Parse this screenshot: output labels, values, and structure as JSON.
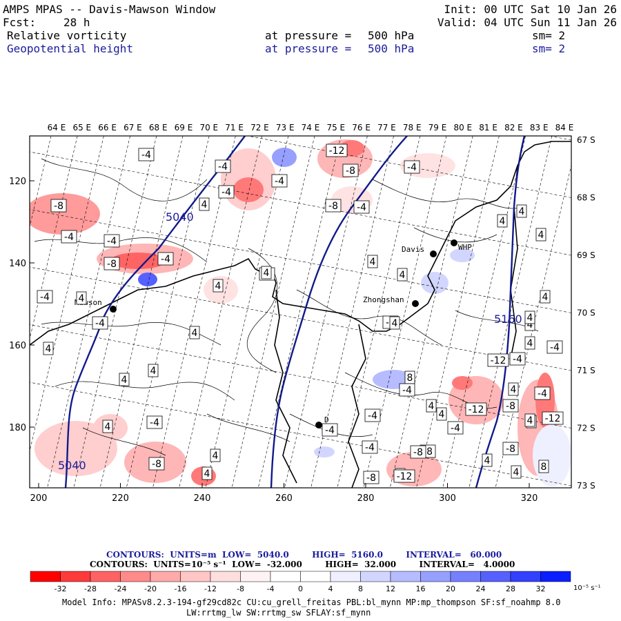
{
  "header": {
    "title": "AMPS MPAS -- Davis-Mawson Window",
    "fcst_label": "Fcst:",
    "fcst_value": "28 h",
    "init": "Init: 00 UTC Sat 10 Jan 26",
    "valid": "Valid: 04 UTC Sun 11 Jan 26",
    "field1": {
      "name": "Relative vorticity",
      "pressure_label": "at pressure =",
      "pressure": "500 hPa",
      "sm": "sm= 2"
    },
    "field2": {
      "name": "Geopotential height",
      "pressure_label": "at pressure =",
      "pressure": "500 hPa",
      "sm": "sm= 2"
    }
  },
  "map": {
    "x_ticks": [
      "200",
      "220",
      "240",
      "260",
      "280",
      "300",
      "320"
    ],
    "y_ticks": [
      "120",
      "140",
      "160",
      "180"
    ],
    "lon_labels": [
      "64 E",
      "65 E",
      "66 E",
      "67 E",
      "68 E",
      "69 E",
      "70 E",
      "71 E",
      "72 E",
      "73 E",
      "74 E",
      "75 E",
      "76 E",
      "77 E",
      "78 E",
      "79 E",
      "80 E",
      "81 E",
      "82 E",
      "83 E",
      "84 E"
    ],
    "lat_labels": [
      "67 S",
      "68 S",
      "69 S",
      "70 S",
      "71 S",
      "72 S",
      "73 S"
    ],
    "stations": [
      {
        "name": "Davis"
      },
      {
        "name": "WHP"
      },
      {
        "name": "Mawson"
      },
      {
        "name": "Zhongshan"
      },
      {
        "name": "D"
      }
    ],
    "height_labels": [
      "5040",
      "5040",
      "5160"
    ],
    "vort_labels": [
      "-4",
      "-4",
      "-4",
      "-12",
      "-8",
      "-4",
      "-8",
      "-4",
      "4",
      "-8",
      "-4",
      "-4",
      "-4",
      "-8",
      "4",
      "-4",
      "-8",
      "4",
      "-4",
      "4",
      "-4",
      "4",
      "4",
      "4",
      "4",
      "4",
      "-4",
      "4",
      "4",
      "-4",
      "-4",
      "-8",
      "-8",
      "4",
      "4",
      "4",
      "4",
      "8",
      "-8",
      "4",
      "-12",
      "4",
      "-8",
      "4",
      "4",
      "-12",
      "-4",
      "4",
      "-12",
      "4",
      "4",
      "-4",
      "4",
      "4",
      "-8",
      "-8",
      "-12",
      "-8",
      "4",
      "8",
      "4",
      "4",
      "4",
      "-4",
      "-4",
      "-4",
      "4",
      "-4"
    ]
  },
  "footer": {
    "contours1": "CONTOURS:  UNITS=m  LOW=  5040.0        HIGH=  5160.0        INTERVAL=   60.000",
    "contours2": "CONTOURS:  UNITS=10⁻⁵ s⁻¹  LOW=  -32.000        HIGH=  32.000        INTERVAL=   4.0000",
    "model1": "Model Info: MPASv8.2.3-194-gf29cd82c CU:cu_grell_freitas PBL:bl_mynn MP:mp_thompson SF:sf_noahmp 8.0",
    "model2": "LW:rrtmg_lw SW:rrtmg_sw SFLAY:sf_mynn"
  },
  "colorbar": {
    "colors": [
      "#ff0000",
      "#ff3a3a",
      "#ff6262",
      "#ff8a8a",
      "#ffaaaa",
      "#ffc6c6",
      "#ffdede",
      "#fff2f2",
      "#ffffff",
      "#ffffff",
      "#eef0ff",
      "#d2d6ff",
      "#b6bcff",
      "#979fff",
      "#7680ff",
      "#5560ff",
      "#3341ff",
      "#0a1eff"
    ],
    "ticks": [
      "-32",
      "-28",
      "-24",
      "-20",
      "-16",
      "-12",
      "-8",
      "-4",
      "0",
      "4",
      "8",
      "12",
      "16",
      "20",
      "24",
      "28",
      "32"
    ],
    "unit": "10⁻⁵ s⁻¹"
  },
  "colors": {
    "height": "#111a8a",
    "neg": "#e65050",
    "pos": "#6f78ff"
  }
}
